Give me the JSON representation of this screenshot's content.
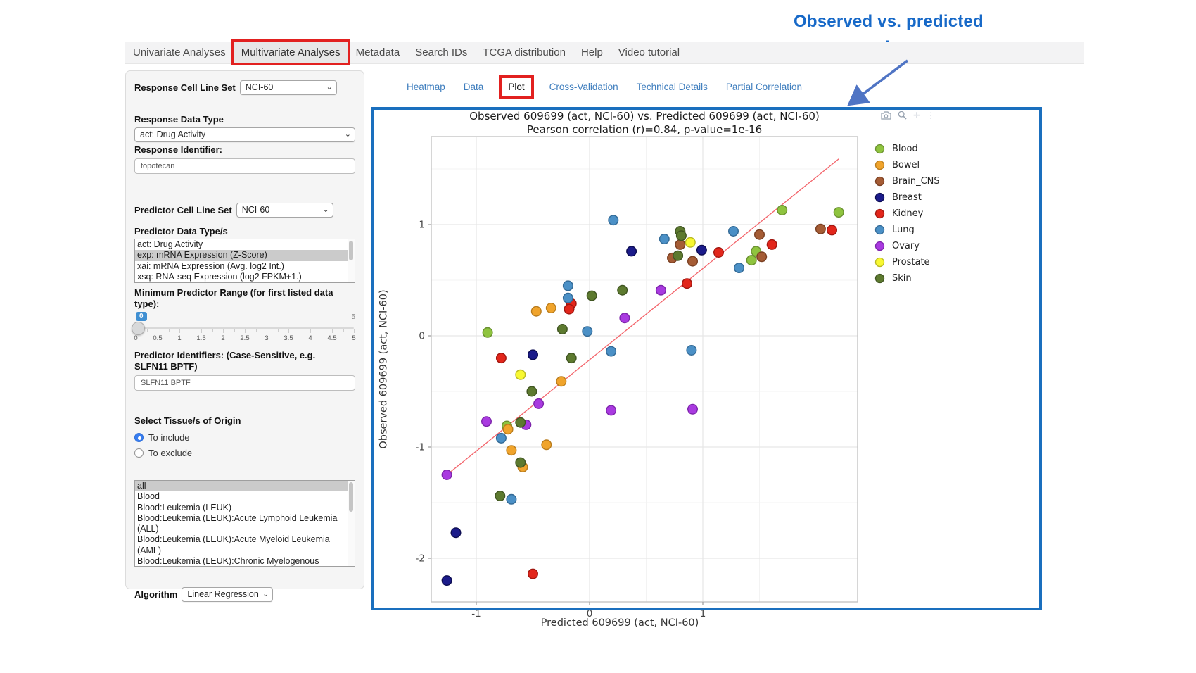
{
  "annotation": {
    "title_line1": "Observed  vs. predicted",
    "title_line2": "response plot"
  },
  "nav": {
    "items": [
      {
        "label": "Univariate Analyses",
        "active": false,
        "highlighted": false
      },
      {
        "label": "Multivariate Analyses",
        "active": true,
        "highlighted": true
      },
      {
        "label": "Metadata",
        "active": false,
        "highlighted": false
      },
      {
        "label": "Search IDs",
        "active": false,
        "highlighted": false
      },
      {
        "label": "TCGA distribution",
        "active": false,
        "highlighted": false
      },
      {
        "label": "Help",
        "active": false,
        "highlighted": false
      },
      {
        "label": "Video tutorial",
        "active": false,
        "highlighted": false
      }
    ]
  },
  "sidebar": {
    "response_cell_line_set": {
      "label": "Response Cell Line Set",
      "value": "NCI-60"
    },
    "response_data_type": {
      "label": "Response Data Type",
      "value": "act: Drug Activity"
    },
    "response_identifier": {
      "label": "Response Identifier:",
      "value": "topotecan"
    },
    "predictor_cell_line_set": {
      "label": "Predictor Cell Line Set",
      "value": "NCI-60"
    },
    "predictor_data_types": {
      "label": "Predictor Data Type/s",
      "options": [
        {
          "label": "act: Drug Activity",
          "selected": false
        },
        {
          "label": "exp: mRNA Expression (Z-Score)",
          "selected": true
        },
        {
          "label": "xai: mRNA Expression (Avg. log2 Int.)",
          "selected": false
        },
        {
          "label": "xsq: RNA-seq Expression (log2 FPKM+1.)",
          "selected": false
        }
      ]
    },
    "min_predictor_range": {
      "label": "Minimum Predictor Range (for first listed data type):",
      "value": "0",
      "min": "0",
      "max": "5",
      "tick_labels": [
        "0",
        "0.5",
        "1",
        "1.5",
        "2",
        "2.5",
        "3",
        "3.5",
        "4",
        "4.5",
        "5"
      ]
    },
    "predictor_identifiers": {
      "label": "Predictor Identifiers: (Case-Sensitive, e.g. SLFN11 BPTF)",
      "value": "SLFN11 BPTF"
    },
    "tissue_origin": {
      "label": "Select Tissue/s of Origin",
      "options": [
        {
          "label": "To include",
          "selected": true
        },
        {
          "label": "To exclude",
          "selected": false
        }
      ]
    },
    "tissue_list": {
      "options": [
        {
          "label": "all",
          "selected": true
        },
        {
          "label": "Blood",
          "selected": false
        },
        {
          "label": "Blood:Leukemia (LEUK)",
          "selected": false
        },
        {
          "label": "Blood:Leukemia (LEUK):Acute Lymphoid Leukemia (ALL)",
          "selected": false
        },
        {
          "label": "Blood:Leukemia (LEUK):Acute Myeloid Leukemia (AML)",
          "selected": false
        },
        {
          "label": "Blood:Leukemia (LEUK):Chronic Myelogenous Leukemia (CML)",
          "selected": false
        }
      ]
    },
    "algorithm": {
      "label": "Algorithm",
      "value": "Linear Regression"
    }
  },
  "tabs": {
    "items": [
      {
        "label": "Heatmap",
        "active": false,
        "highlighted": false
      },
      {
        "label": "Data",
        "active": false,
        "highlighted": false
      },
      {
        "label": "Plot",
        "active": true,
        "highlighted": true
      },
      {
        "label": "Cross-Validation",
        "active": false,
        "highlighted": false
      },
      {
        "label": "Technical Details",
        "active": false,
        "highlighted": false
      },
      {
        "label": "Partial Correlation",
        "active": false,
        "highlighted": false
      }
    ]
  },
  "modebar": {
    "icons": [
      "camera-icon",
      "zoom-icon",
      "pan-icon",
      "more-icon"
    ]
  },
  "colors": {
    "panel_border": "#1a6fbe",
    "highlight_box": "#e2201f",
    "link": "#3f7ebe",
    "annotation_text": "#1769c8",
    "arrow": "#4f74c4",
    "regression_line": "#f2545b"
  },
  "chart_data": {
    "type": "scatter",
    "title": "Observed 609699 (act, NCI-60) vs. Predicted 609699 (act, NCI-60)",
    "subtitle": "Pearson correlation (r)=0.84, p-value=1e-16",
    "xlabel": "Predicted 609699 (act, NCI-60)",
    "ylabel": "Observed 609699 (act, NCI-60)",
    "xlim": [
      -1.4,
      2.37
    ],
    "ylim": [
      -2.39,
      1.79
    ],
    "xticks": [
      -1,
      0,
      1
    ],
    "yticks": [
      -2,
      -1,
      0,
      1
    ],
    "grid": true,
    "legend_position": "right",
    "regression_line": {
      "x1": -1.26,
      "y1": -1.25,
      "x2": 2.2,
      "y2": 1.59
    },
    "series": [
      {
        "name": "Blood",
        "color": "#8fc43f",
        "stroke": "#6a9030",
        "points": [
          [
            1.7,
            1.13
          ],
          [
            2.2,
            1.11
          ],
          [
            1.47,
            0.76
          ],
          [
            1.43,
            0.68
          ],
          [
            -0.9,
            0.03
          ],
          [
            -0.73,
            -0.81
          ]
        ]
      },
      {
        "name": "Bowel",
        "color": "#f0a42c",
        "stroke": "#b97c1d",
        "points": [
          [
            -0.47,
            0.22
          ],
          [
            -0.34,
            0.25
          ],
          [
            -0.25,
            -0.41
          ],
          [
            -0.72,
            -0.84
          ],
          [
            -0.38,
            -0.98
          ],
          [
            -0.69,
            -1.03
          ],
          [
            -0.59,
            -1.18
          ]
        ]
      },
      {
        "name": "Brain_CNS",
        "color": "#a55c35",
        "stroke": "#7a3f22",
        "points": [
          [
            1.5,
            0.91
          ],
          [
            2.04,
            0.96
          ],
          [
            1.52,
            0.71
          ],
          [
            0.8,
            0.82
          ],
          [
            0.73,
            0.7
          ],
          [
            0.91,
            0.67
          ]
        ]
      },
      {
        "name": "Breast",
        "color": "#1b1b8a",
        "stroke": "#0d0d52",
        "points": [
          [
            0.37,
            0.76
          ],
          [
            0.99,
            0.77
          ],
          [
            -0.5,
            -0.17
          ],
          [
            -1.18,
            -1.77
          ],
          [
            -1.26,
            -2.2
          ]
        ]
      },
      {
        "name": "Kidney",
        "color": "#e2261b",
        "stroke": "#a11710",
        "points": [
          [
            1.14,
            0.75
          ],
          [
            1.61,
            0.82
          ],
          [
            2.14,
            0.95
          ],
          [
            0.86,
            0.47
          ],
          [
            -0.16,
            0.29
          ],
          [
            -0.18,
            0.24
          ],
          [
            -0.78,
            -0.2
          ],
          [
            -0.5,
            -2.14
          ]
        ]
      },
      {
        "name": "Lung",
        "color": "#4b90c6",
        "stroke": "#336a96",
        "points": [
          [
            0.21,
            1.04
          ],
          [
            0.66,
            0.87
          ],
          [
            1.27,
            0.94
          ],
          [
            1.32,
            0.61
          ],
          [
            -0.19,
            0.45
          ],
          [
            -0.19,
            0.34
          ],
          [
            -0.02,
            0.04
          ],
          [
            0.19,
            -0.14
          ],
          [
            0.9,
            -0.13
          ],
          [
            -0.78,
            -0.92
          ],
          [
            -0.69,
            -1.47
          ]
        ]
      },
      {
        "name": "Ovary",
        "color": "#a93ae0",
        "stroke": "#7d24ab",
        "points": [
          [
            0.63,
            0.41
          ],
          [
            0.31,
            0.16
          ],
          [
            -0.45,
            -0.61
          ],
          [
            0.19,
            -0.67
          ],
          [
            0.91,
            -0.66
          ],
          [
            -0.91,
            -0.77
          ],
          [
            -0.56,
            -0.8
          ],
          [
            -1.26,
            -1.25
          ]
        ]
      },
      {
        "name": "Prostate",
        "color": "#f8f832",
        "stroke": "#b9b922",
        "points": [
          [
            0.89,
            0.84
          ],
          [
            -0.61,
            -0.35
          ]
        ]
      },
      {
        "name": "Skin",
        "color": "#5d7a2f",
        "stroke": "#405522",
        "points": [
          [
            0.8,
            0.94
          ],
          [
            0.81,
            0.9
          ],
          [
            0.78,
            0.72
          ],
          [
            0.29,
            0.41
          ],
          [
            0.02,
            0.36
          ],
          [
            -0.24,
            0.06
          ],
          [
            -0.16,
            -0.2
          ],
          [
            -0.51,
            -0.5
          ],
          [
            -0.61,
            -0.78
          ],
          [
            -0.61,
            -1.14
          ],
          [
            -0.79,
            -1.44
          ]
        ]
      }
    ]
  }
}
